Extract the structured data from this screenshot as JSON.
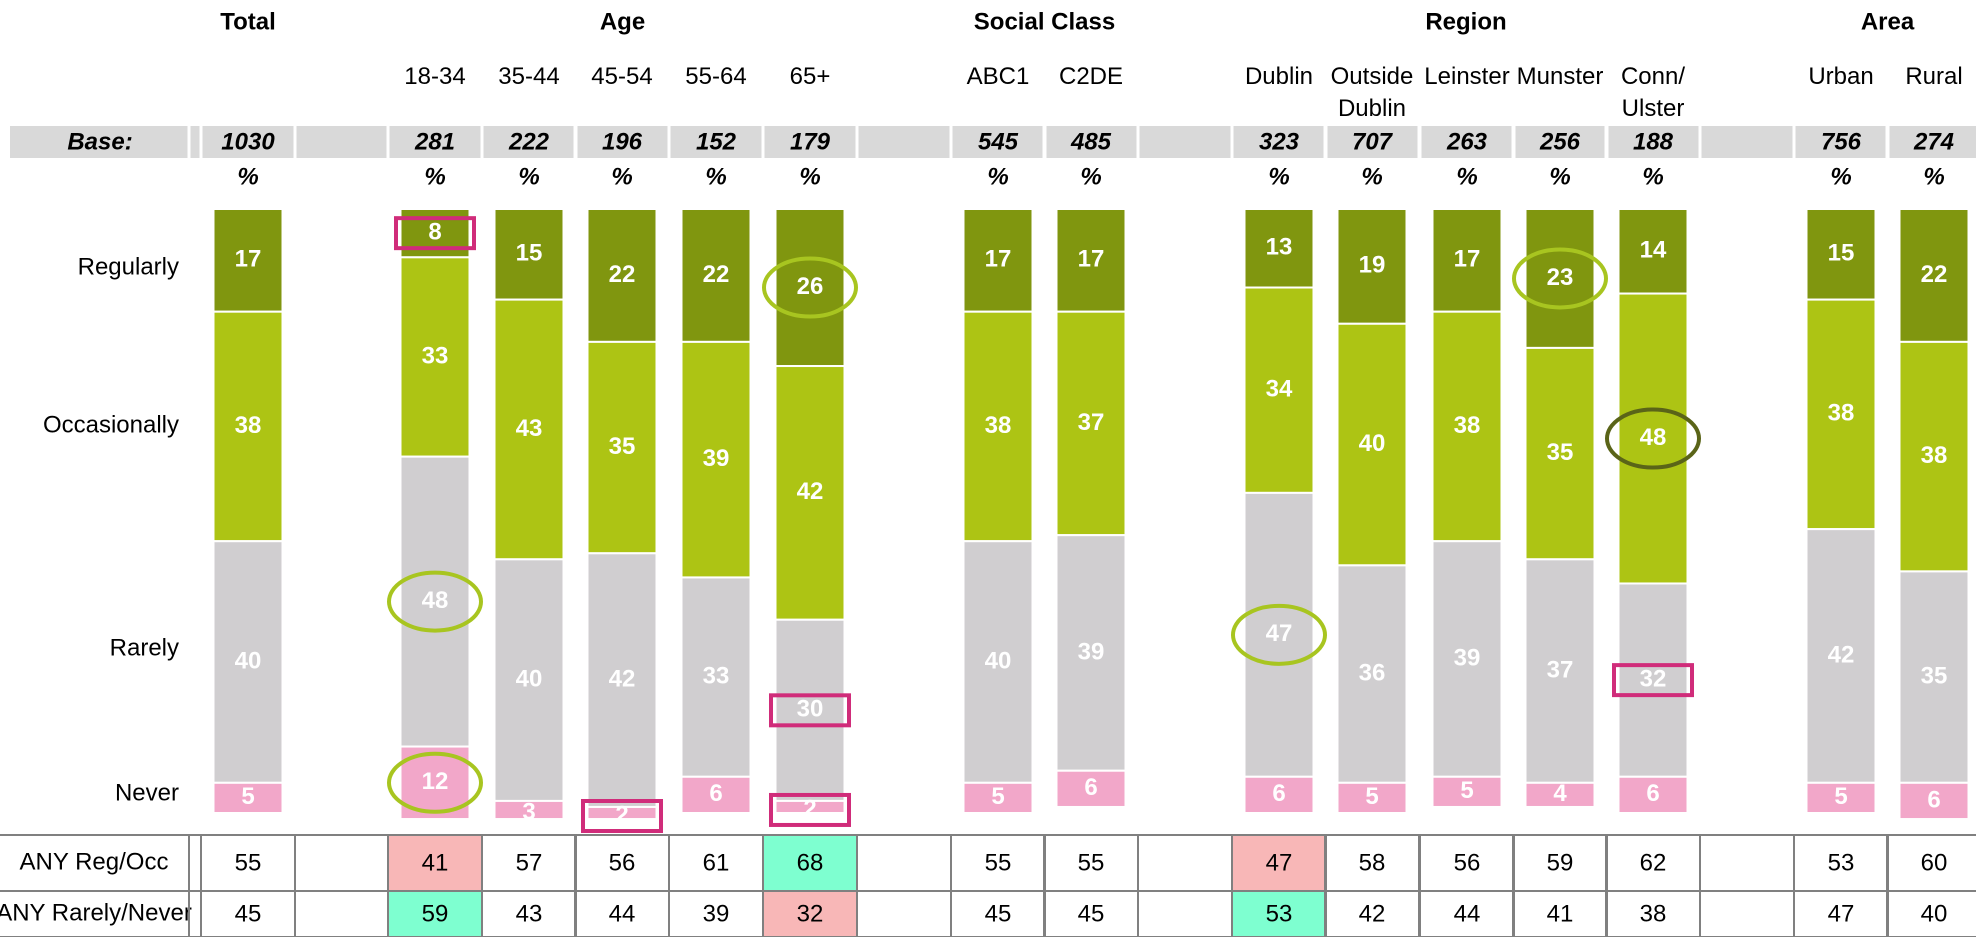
{
  "chart_data": {
    "type": "stacked-bar",
    "groups": [
      {
        "name": "Total",
        "span": [
          0,
          0
        ]
      },
      {
        "name": "Age",
        "span": [
          1,
          5
        ]
      },
      {
        "name": "Social Class",
        "span": [
          6,
          7
        ]
      },
      {
        "name": "Region",
        "span": [
          8,
          12
        ]
      },
      {
        "name": "Area",
        "span": [
          13,
          14
        ]
      }
    ],
    "categories": [
      "",
      "18-34",
      "35-44",
      "45-54",
      "55-64",
      "65+",
      "ABC1",
      "C2DE",
      "Dublin",
      "Outside\nDublin",
      "Leinster",
      "Munster",
      "Conn/\nUlster",
      "Urban",
      "Rural"
    ],
    "base_label": "Base:",
    "bases": [
      1030,
      281,
      222,
      196,
      152,
      179,
      545,
      485,
      323,
      707,
      263,
      256,
      188,
      756,
      274
    ],
    "percent_label": "%",
    "ylim": [
      0,
      100
    ],
    "series": [
      {
        "name": "Regularly",
        "color": "#80960f",
        "values": [
          17,
          8,
          15,
          22,
          22,
          26,
          17,
          17,
          13,
          19,
          17,
          23,
          14,
          15,
          22
        ]
      },
      {
        "name": "Occasionally",
        "color": "#adc414",
        "values": [
          38,
          33,
          43,
          35,
          39,
          42,
          38,
          37,
          34,
          40,
          38,
          35,
          48,
          38,
          38
        ]
      },
      {
        "name": "Rarely",
        "color": "#d0ced0",
        "values": [
          40,
          48,
          40,
          42,
          33,
          30,
          40,
          39,
          47,
          36,
          39,
          37,
          32,
          42,
          35
        ]
      },
      {
        "name": "Never",
        "color": "#f2a7c9",
        "values": [
          5,
          12,
          3,
          2,
          6,
          2,
          5,
          6,
          6,
          5,
          5,
          4,
          6,
          5,
          6
        ]
      }
    ],
    "highlights": [
      {
        "series": 0,
        "category": 1,
        "shape": "box",
        "color": "#d02c7a"
      },
      {
        "series": 3,
        "category": 3,
        "shape": "box",
        "color": "#d02c7a"
      },
      {
        "series": 2,
        "category": 5,
        "shape": "box",
        "color": "#d02c7a"
      },
      {
        "series": 3,
        "category": 5,
        "shape": "box",
        "color": "#d02c7a"
      },
      {
        "series": 2,
        "category": 12,
        "shape": "box",
        "color": "#d02c7a"
      },
      {
        "series": 0,
        "category": 5,
        "shape": "circle",
        "color": "#a8c520"
      },
      {
        "series": 2,
        "category": 1,
        "shape": "circle",
        "color": "#a8c520"
      },
      {
        "series": 3,
        "category": 1,
        "shape": "circle",
        "color": "#a8c520"
      },
      {
        "series": 0,
        "category": 11,
        "shape": "circle",
        "color": "#a8c520"
      },
      {
        "series": 2,
        "category": 8,
        "shape": "circle",
        "color": "#a8c520"
      },
      {
        "series": 1,
        "category": 12,
        "shape": "circle",
        "color": "#5a6418"
      }
    ],
    "table": {
      "rows": [
        {
          "label": "ANY Reg/Occ",
          "values": [
            55,
            41,
            57,
            56,
            61,
            68,
            55,
            55,
            47,
            58,
            56,
            59,
            62,
            53,
            60
          ],
          "highlight": [
            null,
            "#f8b7b7",
            null,
            null,
            null,
            "#7effd0",
            null,
            null,
            "#f8b7b7",
            null,
            null,
            null,
            null,
            null,
            null
          ]
        },
        {
          "label": "ANY Rarely/Never",
          "values": [
            45,
            59,
            43,
            44,
            39,
            32,
            45,
            45,
            53,
            42,
            44,
            41,
            38,
            47,
            40
          ],
          "highlight": [
            null,
            "#7effd0",
            null,
            null,
            null,
            "#f8b7b7",
            null,
            null,
            "#7effd0",
            null,
            null,
            null,
            null,
            null,
            null
          ]
        }
      ]
    }
  }
}
